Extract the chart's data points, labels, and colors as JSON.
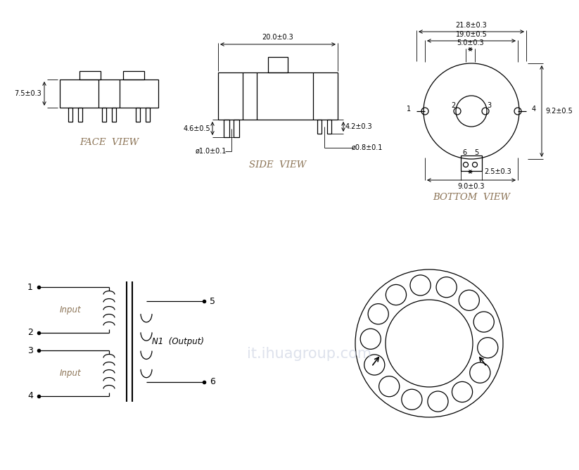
{
  "bg_color": "#ffffff",
  "line_color": "#000000",
  "label_color": "#8B7355",
  "watermark_color": "#c8cfe0",
  "face_view_label": "FACE  VIEW",
  "side_view_label": "SIDE  VIEW",
  "bottom_view_label": "BOTTOM  VIEW",
  "dim_7_5": "7.5±0.3",
  "dim_20_0": "20.0±0.3",
  "dim_4_6": "4.6±0.5",
  "dim_4_2": "4.2±0.3",
  "dim_phi10": "ø1.0±0.1",
  "dim_phi08": "ø0.8±0.1",
  "dim_21_8": "21.8±0.3",
  "dim_19_0": "19.0±0.5",
  "dim_5_0": "5.0±0.3",
  "dim_9_2": "9.2±0.5",
  "dim_2_5": "2.5±0.3",
  "dim_9_0": "9.0±0.3",
  "schematic_input1": "Input",
  "schematic_input2": "Input",
  "schematic_output": "N1  (Output)",
  "watermark": "it.ihuagroup.com"
}
